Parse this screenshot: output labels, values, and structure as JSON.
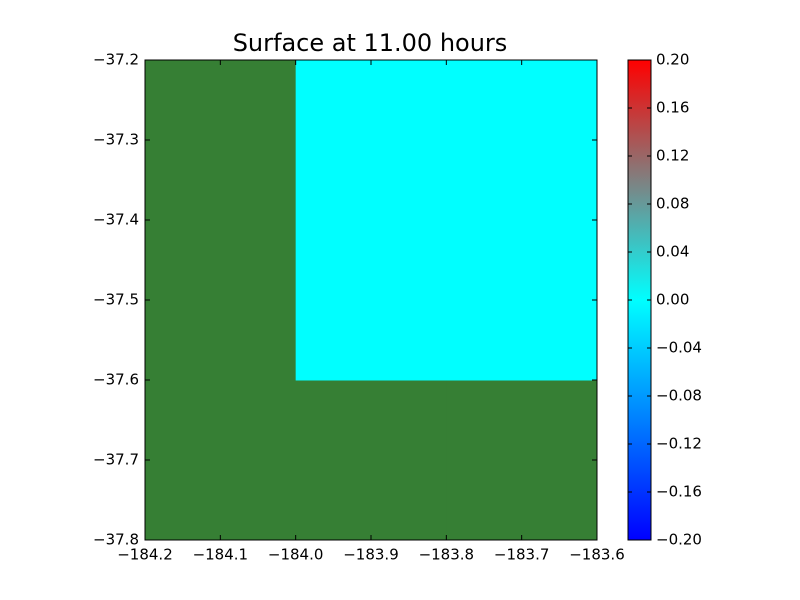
{
  "chart_data": {
    "type": "heatmap",
    "title": "Surface at 11.00 hours",
    "x_edges": [
      -184.2,
      -184.0,
      -183.8,
      -183.6
    ],
    "y_edges": [
      -37.8,
      -37.6,
      -37.4,
      -37.2
    ],
    "values": [
      [
        null,
        null,
        null
      ],
      [
        null,
        0,
        0
      ],
      [
        null,
        0,
        0
      ]
    ],
    "mask_color": "#367f34",
    "xlim": [
      -184.2,
      -183.6
    ],
    "ylim": [
      -37.8,
      -37.2
    ],
    "xticks": [
      {
        "value": -184.2,
        "label": "−184.2"
      },
      {
        "value": -184.1,
        "label": "−184.1"
      },
      {
        "value": -184.0,
        "label": "−184.0"
      },
      {
        "value": -183.9,
        "label": "−183.9"
      },
      {
        "value": -183.8,
        "label": "−183.8"
      },
      {
        "value": -183.7,
        "label": "−183.7"
      },
      {
        "value": -183.6,
        "label": "−183.6"
      }
    ],
    "yticks": [
      {
        "value": -37.8,
        "label": "−37.8"
      },
      {
        "value": -37.7,
        "label": "−37.7"
      },
      {
        "value": -37.6,
        "label": "−37.6"
      },
      {
        "value": -37.5,
        "label": "−37.5"
      },
      {
        "value": -37.4,
        "label": "−37.4"
      },
      {
        "value": -37.3,
        "label": "−37.3"
      },
      {
        "value": -37.2,
        "label": "−37.2"
      }
    ],
    "colormap": [
      {
        "value": -0.2,
        "color": "#0000ff"
      },
      {
        "value": 0,
        "color": "#00ffff"
      },
      {
        "value": 0.1,
        "color": "#808080"
      },
      {
        "value": 0.2,
        "color": "#ff0000"
      }
    ],
    "clim": [
      -0.2,
      0.2
    ],
    "cticks": [
      {
        "value": -0.2,
        "label": "−0.20"
      },
      {
        "value": -0.16,
        "label": "−0.16"
      },
      {
        "value": -0.12,
        "label": "−0.12"
      },
      {
        "value": -0.08,
        "label": "−0.08"
      },
      {
        "value": -0.04,
        "label": "−0.04"
      },
      {
        "value": 0,
        "label": "0.00"
      },
      {
        "value": 0.04,
        "label": "0.04"
      },
      {
        "value": 0.08,
        "label": "0.08"
      },
      {
        "value": 0.12,
        "label": "0.12"
      },
      {
        "value": 0.16,
        "label": "0.16"
      },
      {
        "value": 0.2,
        "label": "0.20"
      }
    ]
  }
}
